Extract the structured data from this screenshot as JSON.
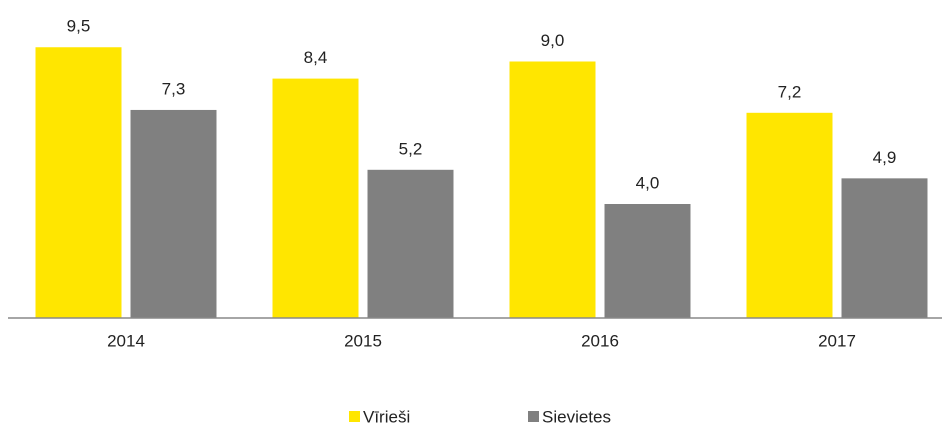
{
  "chart_data": {
    "type": "bar",
    "categories": [
      "2014",
      "2015",
      "2016",
      "2017"
    ],
    "series": [
      {
        "name": "Vīrieši",
        "color": "#ffe600",
        "values": [
          9.5,
          8.4,
          9.0,
          7.2
        ],
        "value_labels": [
          "9,5",
          "8,4",
          "9,0",
          "7,2"
        ]
      },
      {
        "name": "Sievietes",
        "color": "#808080",
        "values": [
          7.3,
          5.2,
          4.0,
          4.9
        ],
        "value_labels": [
          "7,3",
          "5,2",
          "4,0",
          "4,9"
        ]
      }
    ],
    "ylim": [
      0,
      11
    ]
  }
}
